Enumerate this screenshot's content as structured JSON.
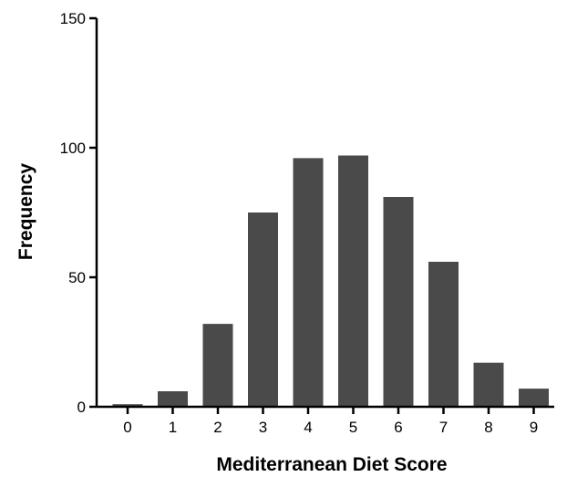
{
  "chart_data": {
    "type": "bar",
    "categories": [
      "0",
      "1",
      "2",
      "3",
      "4",
      "5",
      "6",
      "7",
      "8",
      "9"
    ],
    "values": [
      1,
      6,
      32,
      75,
      96,
      97,
      81,
      56,
      17,
      7
    ],
    "title": "",
    "xlabel": "Mediterranean Diet Score",
    "ylabel": "Frequency",
    "ylim": [
      0,
      150
    ],
    "yticks": [
      0,
      50,
      100,
      150
    ],
    "grid": false,
    "legend": "none",
    "bar_color": "#4a4a4a",
    "axis_color": "#000000"
  }
}
